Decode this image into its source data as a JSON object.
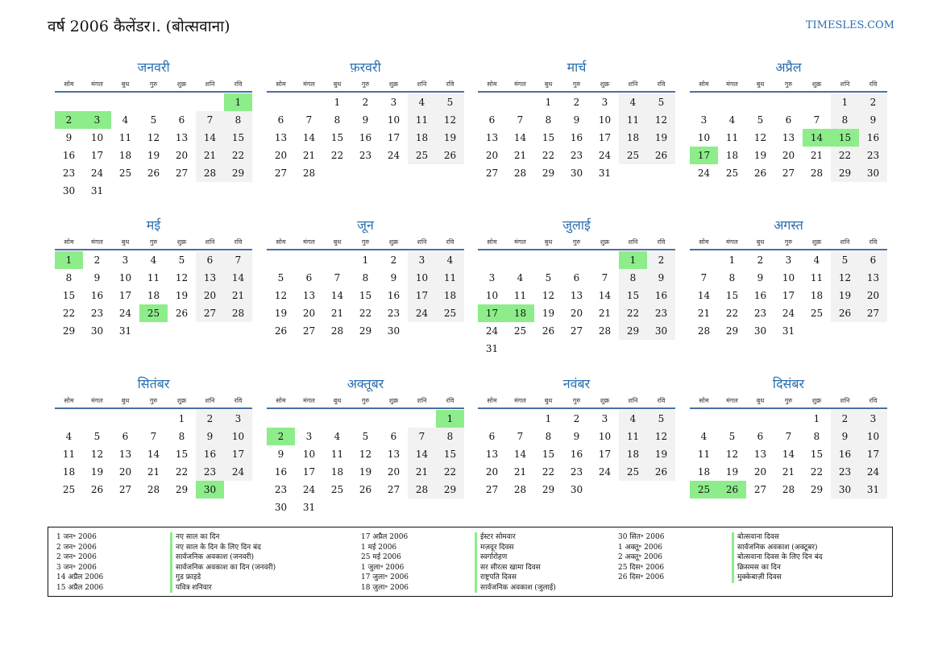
{
  "header": {
    "title": "वर्ष 2006 कैलेंडर।. (बोत्सवाना)",
    "site": "TIMESLES.COM"
  },
  "day_headers": [
    "सोम",
    "मंगल",
    "बुध",
    "गुरु",
    "शुक्र",
    "शनि",
    "रवि"
  ],
  "months": [
    {
      "name": "जनवरी",
      "offset": 6,
      "days": 31,
      "holidays": [
        1,
        2,
        3
      ]
    },
    {
      "name": "फ़रवरी",
      "offset": 2,
      "days": 28,
      "holidays": []
    },
    {
      "name": "मार्च",
      "offset": 2,
      "days": 31,
      "holidays": []
    },
    {
      "name": "अप्रैल",
      "offset": 5,
      "days": 30,
      "holidays": [
        14,
        15,
        17
      ]
    },
    {
      "name": "मई",
      "offset": 0,
      "days": 31,
      "holidays": [
        1,
        25
      ]
    },
    {
      "name": "जून",
      "offset": 3,
      "days": 30,
      "holidays": []
    },
    {
      "name": "जुलाई",
      "offset": 5,
      "days": 31,
      "holidays": [
        1,
        17,
        18
      ]
    },
    {
      "name": "अगस्त",
      "offset": 1,
      "days": 31,
      "holidays": []
    },
    {
      "name": "सितंबर",
      "offset": 4,
      "days": 30,
      "holidays": [
        30
      ]
    },
    {
      "name": "अक्तूबर",
      "offset": 6,
      "days": 31,
      "holidays": [
        1,
        2
      ]
    },
    {
      "name": "नवंबर",
      "offset": 2,
      "days": 30,
      "holidays": []
    },
    {
      "name": "दिसंबर",
      "offset": 4,
      "days": 31,
      "holidays": [
        25,
        26
      ]
    }
  ],
  "holiday_list": [
    [
      {
        "date": "1 जन॰ 2006",
        "name": "नए साल का दिन"
      },
      {
        "date": "2 जन॰ 2006",
        "name": "नए साल के दिन के लिए दिन बंद"
      },
      {
        "date": "2 जन॰ 2006",
        "name": "सार्वजनिक अवकाश (जनवरी)"
      },
      {
        "date": "3 जन॰ 2006",
        "name": "सार्वजनिक अवकाश का दिन (जनवरी)"
      },
      {
        "date": "14 अप्रैल 2006",
        "name": "गुड फ्राइडे"
      },
      {
        "date": "15 अप्रैल 2006",
        "name": "पवित्र शनिवार"
      }
    ],
    [
      {
        "date": "17 अप्रैल 2006",
        "name": "ईस्टर सोमवार"
      },
      {
        "date": "1 मई 2006",
        "name": "मज़दूर दिवस"
      },
      {
        "date": "25 मई 2006",
        "name": "स्वर्गारोहण"
      },
      {
        "date": "1 जुला॰ 2006",
        "name": "सर सीरत्स खामा दिवस"
      },
      {
        "date": "17 जुला॰ 2006",
        "name": "राष्ट्रपति दिवस"
      },
      {
        "date": "18 जुला॰ 2006",
        "name": "सार्वजनिक अवकाश (जुलाई)"
      }
    ],
    [
      {
        "date": "30 सित॰ 2006",
        "name": "बोत्सवाना दिवस"
      },
      {
        "date": "1 अक्तू॰ 2006",
        "name": "सार्वजनिक अवकाश (अक्टूबर)"
      },
      {
        "date": "2 अक्तू॰ 2006",
        "name": "बोत्सवाना दिवस के लिए दिन बंद"
      },
      {
        "date": "25 दिस॰ 2006",
        "name": "क्रिसमस का दिन"
      },
      {
        "date": "26 दिस॰ 2006",
        "name": "मुक्केबाज़ी दिवस"
      }
    ]
  ],
  "colors": {
    "accent": "#2a6fb0",
    "holiday": "#8ded8a",
    "weekend": "#f2f2f2"
  }
}
